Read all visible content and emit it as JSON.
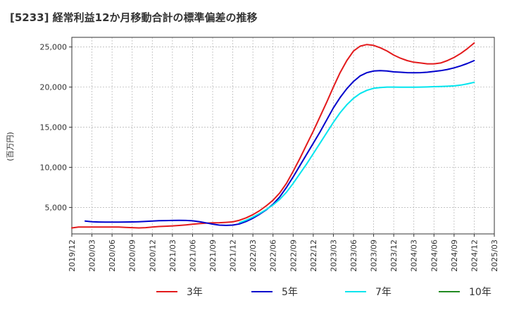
{
  "chart_data": {
    "type": "line",
    "title": "[5233]  経常利益12か月移動合計の標準偏差の推移",
    "ylabel": "(百万円)",
    "xlabel": "",
    "ylim": [
      1700,
      26200
    ],
    "yticks": [
      5000,
      10000,
      15000,
      20000,
      25000
    ],
    "ytick_labels": [
      "5,000",
      "10,000",
      "15,000",
      "20,000",
      "25,000"
    ],
    "xticks": [
      "2019/12",
      "2020/03",
      "2020/06",
      "2020/09",
      "2020/12",
      "2021/03",
      "2021/06",
      "2021/09",
      "2021/12",
      "2022/03",
      "2022/06",
      "2022/09",
      "2022/12",
      "2023/03",
      "2023/06",
      "2023/09",
      "2023/12",
      "2024/03",
      "2024/06",
      "2024/09",
      "2024/12",
      "2025/03"
    ],
    "grid": true,
    "legend_position": "bottom",
    "series": [
      {
        "name": "3年",
        "color": "#e31a1c",
        "x": [
          "2019/12",
          "2020/01",
          "2020/02",
          "2020/03",
          "2020/04",
          "2020/05",
          "2020/06",
          "2020/07",
          "2020/08",
          "2020/09",
          "2020/10",
          "2020/11",
          "2020/12",
          "2021/01",
          "2021/02",
          "2021/03",
          "2021/04",
          "2021/05",
          "2021/06",
          "2021/07",
          "2021/08",
          "2021/09",
          "2021/10",
          "2021/11",
          "2021/12",
          "2022/01",
          "2022/02",
          "2022/03",
          "2022/04",
          "2022/05",
          "2022/06",
          "2022/07",
          "2022/08",
          "2022/09",
          "2022/10",
          "2022/11",
          "2022/12",
          "2023/01",
          "2023/02",
          "2023/03",
          "2023/04",
          "2023/05",
          "2023/06",
          "2023/07",
          "2023/08",
          "2023/09",
          "2023/10",
          "2023/11",
          "2023/12",
          "2024/01",
          "2024/02",
          "2024/03",
          "2024/04",
          "2024/05",
          "2024/06",
          "2024/07",
          "2024/08",
          "2024/09",
          "2024/10",
          "2024/11",
          "2024/12"
        ],
        "values": [
          2450,
          2550,
          2550,
          2550,
          2560,
          2560,
          2560,
          2560,
          2520,
          2480,
          2450,
          2480,
          2550,
          2620,
          2660,
          2700,
          2750,
          2820,
          2900,
          2980,
          3040,
          3080,
          3100,
          3140,
          3200,
          3400,
          3700,
          4100,
          4600,
          5200,
          5900,
          6800,
          8000,
          9500,
          11100,
          12800,
          14500,
          16300,
          18100,
          20000,
          21800,
          23300,
          24500,
          25100,
          25300,
          25200,
          24900,
          24500,
          24000,
          23600,
          23300,
          23100,
          23000,
          22900,
          22900,
          23000,
          23300,
          23700,
          24200,
          24800,
          25500
        ]
      },
      {
        "name": "5年",
        "color": "#0000cc",
        "x": [
          "2020/02",
          "2020/03",
          "2020/04",
          "2020/05",
          "2020/06",
          "2020/07",
          "2020/08",
          "2020/09",
          "2020/10",
          "2020/11",
          "2020/12",
          "2021/01",
          "2021/02",
          "2021/03",
          "2021/04",
          "2021/05",
          "2021/06",
          "2021/07",
          "2021/08",
          "2021/09",
          "2021/10",
          "2021/11",
          "2021/12",
          "2022/01",
          "2022/02",
          "2022/03",
          "2022/04",
          "2022/05",
          "2022/06",
          "2022/07",
          "2022/08",
          "2022/09",
          "2022/10",
          "2022/11",
          "2022/12",
          "2023/01",
          "2023/02",
          "2023/03",
          "2023/04",
          "2023/05",
          "2023/06",
          "2023/07",
          "2023/08",
          "2023/09",
          "2023/10",
          "2023/11",
          "2023/12",
          "2024/01",
          "2024/02",
          "2024/03",
          "2024/04",
          "2024/05",
          "2024/06",
          "2024/07",
          "2024/08",
          "2024/09",
          "2024/10",
          "2024/11",
          "2024/12"
        ],
        "values": [
          3300,
          3220,
          3180,
          3170,
          3170,
          3170,
          3180,
          3190,
          3220,
          3260,
          3300,
          3340,
          3360,
          3380,
          3390,
          3380,
          3330,
          3230,
          3080,
          2920,
          2800,
          2760,
          2800,
          2950,
          3250,
          3650,
          4150,
          4700,
          5400,
          6300,
          7500,
          8800,
          10200,
          11600,
          13000,
          14400,
          15900,
          17400,
          18700,
          19800,
          20700,
          21400,
          21800,
          22000,
          22050,
          22000,
          21900,
          21850,
          21800,
          21780,
          21800,
          21850,
          21950,
          22050,
          22200,
          22400,
          22650,
          22950,
          23300
        ]
      },
      {
        "name": "7年",
        "color": "#00e5ee",
        "x": [
          "2022/01",
          "2022/02",
          "2022/03",
          "2022/04",
          "2022/05",
          "2022/06",
          "2022/07",
          "2022/08",
          "2022/09",
          "2022/10",
          "2022/11",
          "2022/12",
          "2023/01",
          "2023/02",
          "2023/03",
          "2023/04",
          "2023/05",
          "2023/06",
          "2023/07",
          "2023/08",
          "2023/09",
          "2023/10",
          "2023/11",
          "2023/12",
          "2024/01",
          "2024/02",
          "2024/03",
          "2024/04",
          "2024/05",
          "2024/06",
          "2024/07",
          "2024/08",
          "2024/09",
          "2024/10",
          "2024/11",
          "2024/12"
        ],
        "values": [
          3100,
          3400,
          3800,
          4250,
          4750,
          5300,
          6000,
          6900,
          8000,
          9200,
          10400,
          11700,
          13000,
          14300,
          15600,
          16800,
          17800,
          18600,
          19200,
          19600,
          19850,
          19950,
          20000,
          20000,
          19990,
          19980,
          19980,
          20000,
          20020,
          20050,
          20080,
          20110,
          20150,
          20250,
          20400,
          20600
        ]
      },
      {
        "name": "10年",
        "color": "#228b22",
        "x": [],
        "values": []
      }
    ]
  }
}
